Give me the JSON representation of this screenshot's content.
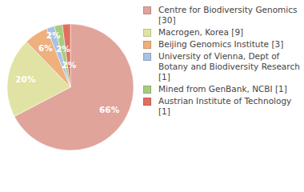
{
  "chart_data": {
    "type": "pie",
    "categories": [
      "Centre for Biodiversity Genomics [30]",
      "Macrogen, Korea [9]",
      "Beijing Genomics Institute [3]",
      "University of Vienna, Dept of Botany and Biodiversity Research [1]",
      "Mined from GenBank, NCBI [1]",
      "Austrian Institute of Technology [1]"
    ],
    "values": [
      66,
      20,
      6,
      2,
      2,
      2
    ],
    "value_labels": [
      "66%",
      "20%",
      "6%",
      "2%",
      "2%",
      "2%"
    ],
    "colors": [
      "#e0a49a",
      "#e0e3a3",
      "#eeb07c",
      "#a9c1e2",
      "#a6cd7e",
      "#e0705e"
    ],
    "data_labels": true,
    "legend": "right"
  }
}
